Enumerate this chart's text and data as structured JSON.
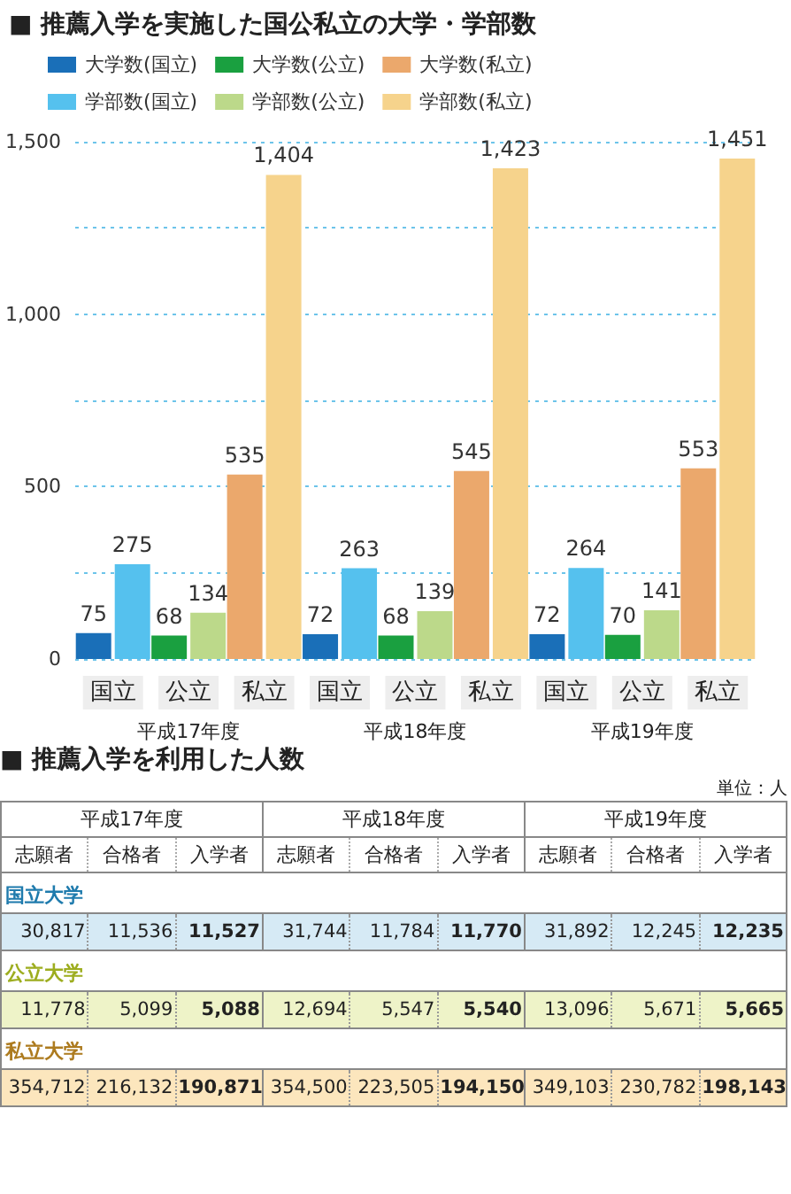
{
  "chart_data": [
    {
      "type": "bar",
      "title": "■ 推薦入学を実施した国公私立の大学・学部数",
      "categories": [
        "国立",
        "公立",
        "私立",
        "国立",
        "公立",
        "私立",
        "国立",
        "公立",
        "私立"
      ],
      "annotations": [
        "平成17年度",
        "平成18年度",
        "平成19年度"
      ],
      "series": [
        {
          "name": "大学数(国立)",
          "color": "#1a6fb8",
          "values": [
            75,
            null,
            null,
            72,
            null,
            null,
            72,
            null,
            null
          ],
          "value_labels": [
            "75",
            null,
            null,
            "72",
            null,
            null,
            "72",
            null,
            null
          ]
        },
        {
          "name": "大学数(公立)",
          "color": "#1aa040",
          "values": [
            null,
            68,
            null,
            null,
            68,
            null,
            null,
            70,
            null
          ],
          "value_labels": [
            null,
            "68",
            null,
            null,
            "68",
            null,
            null,
            "70",
            null
          ]
        },
        {
          "name": "大学数(私立)",
          "color": "#eba86c",
          "values": [
            null,
            null,
            535,
            null,
            null,
            545,
            null,
            null,
            553
          ],
          "value_labels": [
            null,
            null,
            "535",
            null,
            null,
            "545",
            null,
            null,
            "553"
          ]
        },
        {
          "name": "学部数(国立)",
          "color": "#55c1ee",
          "values": [
            275,
            null,
            null,
            263,
            null,
            null,
            264,
            null,
            null
          ],
          "value_labels": [
            "275",
            null,
            null,
            "263",
            null,
            null,
            "264",
            null,
            null
          ]
        },
        {
          "name": "学部数(公立)",
          "color": "#bcd98a",
          "values": [
            null,
            134,
            null,
            null,
            139,
            null,
            null,
            141,
            null
          ],
          "value_labels": [
            null,
            "134",
            null,
            null,
            "139",
            null,
            null,
            "141",
            null
          ]
        },
        {
          "name": "学部数(私立)",
          "color": "#f6d38c",
          "values": [
            null,
            null,
            1404,
            null,
            null,
            1423,
            null,
            null,
            1451
          ],
          "value_labels": [
            null,
            null,
            "1,404",
            null,
            null,
            "1,423",
            null,
            null,
            "1,451"
          ]
        }
      ],
      "ylim": [
        0,
        1500
      ],
      "yticks": [
        0,
        {
          "value": 250,
          "label": null
        },
        {
          "value": 500,
          "label": "500"
        },
        {
          "value": 750,
          "label": null
        },
        {
          "value": 1000,
          "label": "1,000"
        },
        {
          "value": 1250,
          "label": null
        },
        {
          "value": 1500,
          "label": "1,500"
        }
      ],
      "grid": "y",
      "legend": "top left"
    },
    {
      "type": "other",
      "title": "■ 推薦入学を利用した人数",
      "subtitle": "単位：人",
      "annotations": [
        "平成17年度",
        "平成18年度",
        "平成19年度"
      ],
      "categories": [
        "志願者",
        "合格者",
        "入学者",
        "志願者",
        "合格者",
        "入学者",
        "志願者",
        "合格者",
        "入学者"
      ],
      "series": [
        {
          "name": "国立大学",
          "color": "#d6eaf5",
          "values": [
            30817,
            11536,
            11527,
            31744,
            11784,
            11770,
            31892,
            12245,
            12235
          ],
          "value_labels": [
            "30,817",
            "11,536",
            "11,527",
            "31,744",
            "11,784",
            "11,770",
            "31,892",
            "12,245",
            "12,235"
          ]
        },
        {
          "name": "公立大学",
          "color": "#eef3c8",
          "values": [
            11778,
            5099,
            5088,
            12694,
            5547,
            5540,
            13096,
            5671,
            5665
          ],
          "value_labels": [
            "11,778",
            "5,099",
            "5,088",
            "12,694",
            "5,547",
            "5,540",
            "13,096",
            "5,671",
            "5,665"
          ]
        },
        {
          "name": "私立大学",
          "color": "#fce6bd",
          "values": [
            354712,
            216132,
            190871,
            354500,
            223505,
            194150,
            349103,
            230782,
            198143
          ],
          "value_labels": [
            "354,712",
            "216,132",
            "190,871",
            "354,500",
            "223,505",
            "194,150",
            "349,103",
            "230,782",
            "198,143"
          ]
        }
      ]
    }
  ]
}
